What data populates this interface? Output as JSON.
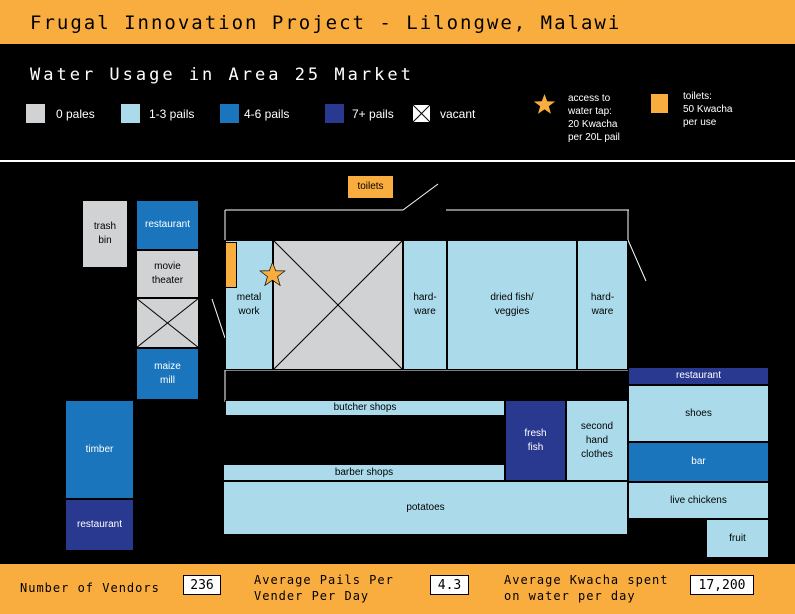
{
  "header": {
    "title": "Frugal Innovation Project - Lilongwe, Malawi"
  },
  "legend": {
    "title": "Water Usage in Area 25 Market",
    "items": [
      {
        "label": "0 pales",
        "color": "#d1d2d4"
      },
      {
        "label": "1-3 pails",
        "color": "#abdbea"
      },
      {
        "label": "4-6 pails",
        "color": "#1a75bc"
      },
      {
        "label": "7+ pails",
        "color": "#2a3990"
      },
      {
        "label": "vacant",
        "color": "#ffffff"
      }
    ],
    "tap_note": "access to\nwater tap:\n20 Kwacha\nper 20L pail",
    "toilet_note": "toilets:\n50 Kwacha\nper use"
  },
  "map": {
    "toilets": "toilets",
    "trash_bin": "trash\nbin",
    "restaurant_nw": "restaurant",
    "movie_theater": "movie\ntheater",
    "maize_mill": "maize\nmill",
    "timber": "timber",
    "restaurant_sw": "restaurant",
    "metal_work": "metal\nwork",
    "hardware_1": "hard-\nware",
    "dried_fish": "dried fish/\nveggies",
    "hardware_2": "hard-\nware",
    "butcher_shops": "butcher shops",
    "fresh_fish": "fresh\nfish",
    "second_hand": "second\nhand\nclothes",
    "barber_shops": "barber shops",
    "potatoes": "potatoes",
    "restaurant_e": "restaurant",
    "shoes": "shoes",
    "bar": "bar",
    "live_chickens": "live chickens",
    "fruit": "fruit"
  },
  "stats": {
    "vendors_label": "Number of Vendors",
    "vendors_value": "236",
    "pails_label": "Average Pails Per\nVender Per Day",
    "pails_value": "4.3",
    "kwacha_label": "Average Kwacha spent\non water per day",
    "kwacha_value": "17,200"
  }
}
